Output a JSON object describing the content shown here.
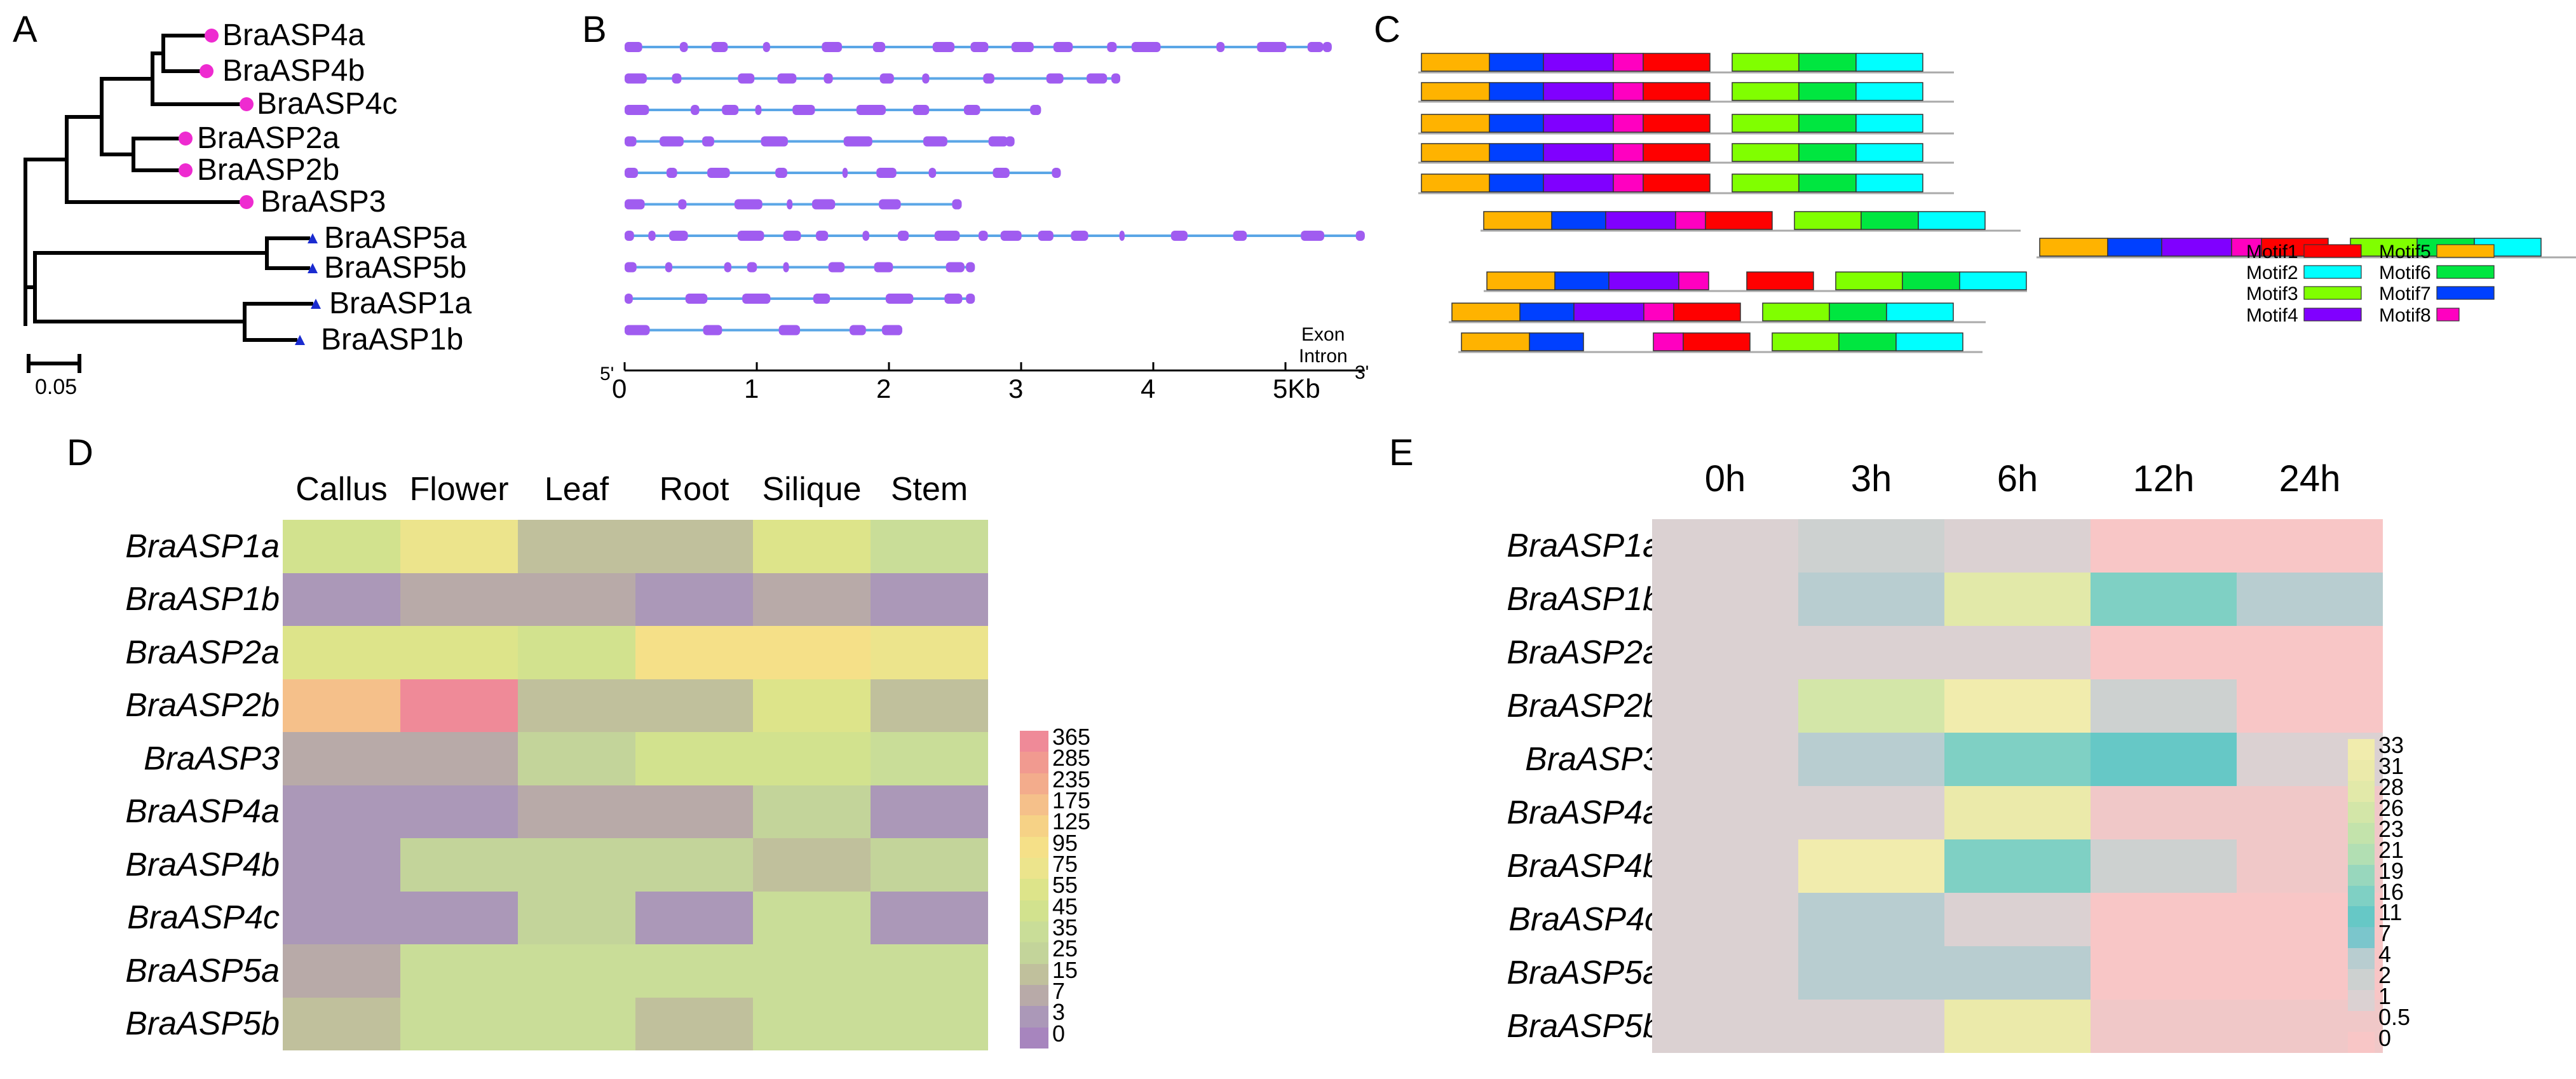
{
  "panels": {
    "A": "A",
    "B": "B",
    "C": "C",
    "D": "D",
    "E": "E"
  },
  "tree": {
    "scale_label": "0.05",
    "leaves": [
      {
        "name": "BraASP4a",
        "marker": "circle"
      },
      {
        "name": "BraASP4b",
        "marker": "circle"
      },
      {
        "name": "BraASP4c",
        "marker": "circle"
      },
      {
        "name": "BraASP2a",
        "marker": "circle"
      },
      {
        "name": "BraASP2b",
        "marker": "circle"
      },
      {
        "name": "BraASP3",
        "marker": "circle"
      },
      {
        "name": "BraASP5a",
        "marker": "triangle"
      },
      {
        "name": "BraASP5b",
        "marker": "triangle"
      },
      {
        "name": "BraASP1a",
        "marker": "triangle"
      },
      {
        "name": "BraASP1b",
        "marker": "triangle"
      }
    ]
  },
  "gene_structure": {
    "legend_exon": "Exon",
    "legend_intron": "Intron",
    "five_prime": "5'",
    "three_prime": "3'",
    "axis_ticks": [
      "0",
      "1",
      "2",
      "3",
      "4",
      "5Kb"
    ],
    "gene_lengths_kb": [
      5.35,
      3.75,
      3.15,
      2.95,
      3.3,
      2.55,
      5.6,
      2.65,
      2.65,
      2.1
    ],
    "colors": {
      "exon": "#a05cf0",
      "intron": "#5aa6e6"
    }
  },
  "motifs": {
    "legend": [
      {
        "name": "Motif1",
        "color": "#ff0000"
      },
      {
        "name": "Motif2",
        "color": "#00ffff"
      },
      {
        "name": "Motif3",
        "color": "#80ff00"
      },
      {
        "name": "Motif4",
        "color": "#8000ff"
      },
      {
        "name": "Motif5",
        "color": "#ffb300"
      },
      {
        "name": "Motif6",
        "color": "#00e640"
      },
      {
        "name": "Motif7",
        "color": "#0040ff"
      },
      {
        "name": "Motif8",
        "color": "#ff00c0"
      }
    ]
  },
  "tissue_heatmap": {
    "columns": [
      "Callus",
      "Flower",
      "Leaf",
      "Root",
      "Silique",
      "Stem"
    ],
    "rows": [
      "BraASP1a",
      "BraASP1b",
      "BraASP2a",
      "BraASP2b",
      "BraASP3",
      "BraASP4a",
      "BraASP4b",
      "BraASP4c",
      "BraASP5a",
      "BraASP5b"
    ],
    "values": [
      [
        40,
        80,
        12,
        12,
        60,
        35
      ],
      [
        2,
        5,
        8,
        2,
        5,
        3
      ],
      [
        50,
        60,
        40,
        100,
        100,
        75
      ],
      [
        175,
        365,
        15,
        15,
        60,
        15
      ],
      [
        8,
        8,
        20,
        40,
        40,
        30
      ],
      [
        1,
        1,
        8,
        5,
        20,
        1
      ],
      [
        1,
        25,
        25,
        25,
        12,
        20
      ],
      [
        1,
        1,
        20,
        1,
        35,
        1
      ],
      [
        8,
        35,
        35,
        35,
        35,
        35
      ],
      [
        15,
        30,
        30,
        15,
        30,
        30
      ]
    ],
    "legend_labels": [
      "365",
      "285",
      "235",
      "175",
      "125",
      "95",
      "75",
      "55",
      "45",
      "35",
      "25",
      "15",
      "7",
      "3",
      "0"
    ],
    "legend_colors": [
      "#ef8a98",
      "#f19a90",
      "#f3ac8c",
      "#f5c08a",
      "#f6d286",
      "#f5e088",
      "#ece48c",
      "#dde48a",
      "#d2e28e",
      "#c9dd98",
      "#c3d49a",
      "#c0c09c",
      "#b8aaa8",
      "#ab98b8",
      "#a785be"
    ]
  },
  "stress_heatmap": {
    "columns": [
      "0h",
      "3h",
      "6h",
      "12h",
      "24h"
    ],
    "rows": [
      "BraASP1a",
      "BraASP1b",
      "BraASP2a",
      "BraASP2b",
      "BraASP3",
      "BraASP4a",
      "BraASP4b",
      "BraASP4c",
      "BraASP5a",
      "BraASP5b"
    ],
    "values": [
      [
        1,
        2,
        1,
        0,
        0
      ],
      [
        1,
        4,
        28,
        16,
        4
      ],
      [
        1,
        1,
        1,
        0,
        0
      ],
      [
        1,
        26,
        33,
        2,
        0
      ],
      [
        1,
        3,
        16,
        11,
        1
      ],
      [
        1,
        1,
        31,
        0.5,
        0.5
      ],
      [
        1,
        33,
        16,
        2,
        0.5
      ],
      [
        1,
        4,
        1,
        0,
        0
      ],
      [
        1,
        3,
        4,
        0,
        0
      ],
      [
        1,
        1,
        31,
        0.5,
        0.5
      ]
    ],
    "legend_labels": [
      "33",
      "31",
      "28",
      "26",
      "23",
      "21",
      "19",
      "16",
      "11",
      "7",
      "4",
      "2",
      "1",
      "0.5",
      "0"
    ],
    "legend_colors": [
      "#f1ecad",
      "#ebeaaa",
      "#e2e9a9",
      "#d3e6a8",
      "#c3e3ab",
      "#b2dfb3",
      "#98d7bd",
      "#7fd0c4",
      "#66c8c6",
      "#7bc6cc",
      "#b8cdd0",
      "#cdd1d0",
      "#dbd1d2",
      "#f0c8c8",
      "#f8c6c6"
    ]
  }
}
